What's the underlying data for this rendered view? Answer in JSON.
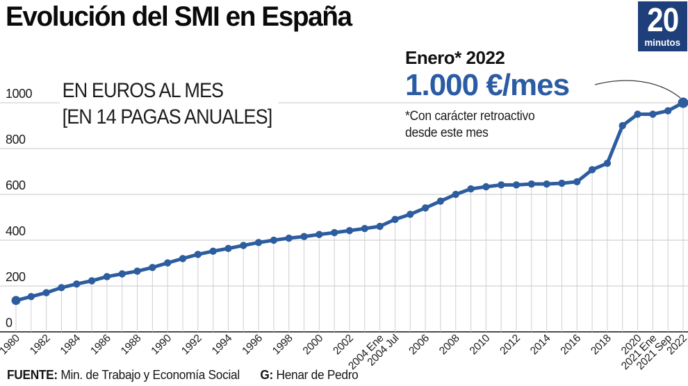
{
  "header": {
    "title": "Evolución del SMI en España"
  },
  "logo": {
    "number": "20",
    "word": "minutos",
    "bg_color": "#1e3f7a"
  },
  "y_axis_label": {
    "line1": "EN EUROS AL MES",
    "line2": "[EN 14 PAGAS ANUALES]"
  },
  "annotation": {
    "date": "Enero* 2022",
    "value": "1.000 €/mes",
    "value_color": "#2b5ba3",
    "note_line1": "*Con carácter retroactivo",
    "note_line2": "desde este mes"
  },
  "footer": {
    "source_label": "FUENTE:",
    "source": "Min. de Trabajo y Economía Social",
    "credit_label": "G:",
    "credit": "Henar de Pedro"
  },
  "chart_data": {
    "type": "line",
    "title": "Evolución del SMI en España",
    "ylabel": "EN EUROS AL MES (EN 14 PAGAS ANUALES)",
    "xlabel": "",
    "unit": "€/mes",
    "ylim": [
      0,
      1040
    ],
    "y_ticks": [
      0,
      200,
      400,
      600,
      800,
      1000
    ],
    "grid": "horizontal gridlines + vertical drop line per point",
    "legend": "none",
    "line_color": "#2d5d9e",
    "x": [
      "1980",
      "1981",
      "1982",
      "1983",
      "1984",
      "1985",
      "1986",
      "1987",
      "1988",
      "1989",
      "1990",
      "1991",
      "1992",
      "1993",
      "1994",
      "1995",
      "1996",
      "1997",
      "1998",
      "1999",
      "2000",
      "2001",
      "2002",
      "2003",
      "2004 Ene",
      "2004 Jul",
      "2005",
      "2006",
      "2007",
      "2008",
      "2009",
      "2010",
      "2011",
      "2012",
      "2013",
      "2014",
      "2015",
      "2016",
      "2017",
      "2018",
      "2019",
      "2020",
      "2021 Ene",
      "2021 Sep",
      "2022"
    ],
    "y": [
      137,
      154,
      171,
      193,
      209,
      223,
      241,
      253,
      265,
      281,
      301,
      320,
      338,
      352,
      364,
      377,
      390,
      400,
      409,
      416,
      425,
      433,
      442,
      451,
      460.5,
      490.8,
      513,
      540.9,
      570.6,
      600,
      624,
      633.3,
      641.4,
      641.4,
      645.3,
      645.3,
      648.6,
      655.2,
      707.7,
      735.9,
      900,
      950,
      950,
      965,
      1000
    ],
    "shown_x_labels": [
      "1980",
      "1982",
      "1984",
      "1986",
      "1988",
      "1990",
      "1992",
      "1994",
      "1996",
      "1998",
      "2000",
      "2002",
      "2004 Ene",
      "2004 Jul",
      "2006",
      "2008",
      "2010",
      "2012",
      "2014",
      "2016",
      "2018",
      "2020",
      "2021 Ene",
      "2021 Sep",
      "2022"
    ]
  }
}
